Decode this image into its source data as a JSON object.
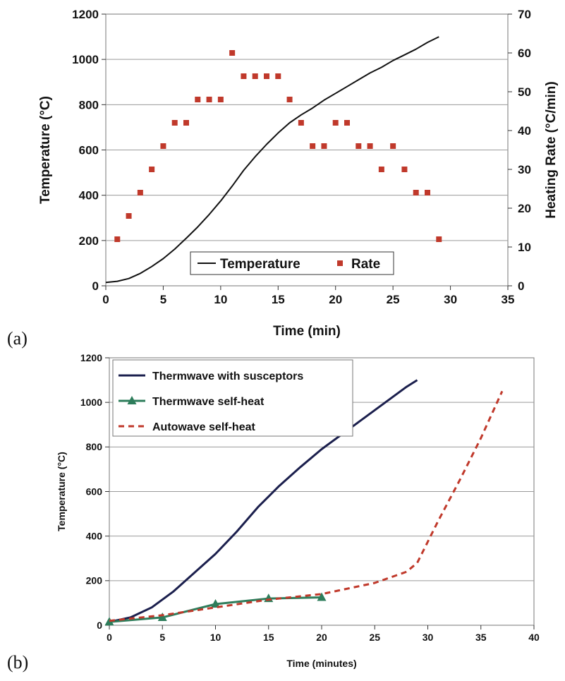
{
  "charts": [
    {
      "panel_label": "(a)",
      "chart_data": {
        "type": "line",
        "xlabel": "Time (min)",
        "ylabel": "Temperature (°C)",
        "y2label": "Heating Rate (°C/min)",
        "xlim": [
          0,
          35
        ],
        "ylim": [
          0,
          1200
        ],
        "y2lim": [
          0,
          70
        ],
        "xticks": [
          0,
          5,
          10,
          15,
          20,
          25,
          30,
          35
        ],
        "yticks": [
          0,
          200,
          400,
          600,
          800,
          1000,
          1200
        ],
        "y2ticks": [
          0,
          10,
          20,
          30,
          40,
          50,
          60,
          70
        ],
        "grid": true,
        "legend_position": "bottom-center",
        "series": [
          {
            "name": "Temperature",
            "kind": "line",
            "axis": "left",
            "color": "#111111",
            "x": [
              0,
              1,
              2,
              3,
              4,
              5,
              6,
              7,
              8,
              9,
              10,
              11,
              12,
              13,
              14,
              15,
              16,
              17,
              18,
              19,
              20,
              21,
              22,
              23,
              24,
              25,
              26,
              27,
              28,
              29
            ],
            "y": [
              15,
              20,
              32,
              55,
              85,
              120,
              162,
              210,
              260,
              315,
              375,
              440,
              510,
              570,
              625,
              675,
              720,
              755,
              785,
              820,
              850,
              880,
              910,
              940,
              965,
              995,
              1020,
              1045,
              1075,
              1100
            ]
          },
          {
            "name": "Rate",
            "kind": "scatter",
            "axis": "right",
            "color": "#c0392b",
            "x": [
              1,
              2,
              3,
              4,
              5,
              6,
              7,
              8,
              9,
              10,
              11,
              12,
              13,
              14,
              15,
              16,
              17,
              18,
              19,
              20,
              21,
              22,
              23,
              24,
              25,
              26,
              27,
              28,
              29
            ],
            "y": [
              12,
              18,
              24,
              30,
              36,
              42,
              42,
              48,
              48,
              48,
              60,
              54,
              54,
              54,
              54,
              48,
              42,
              36,
              36,
              42,
              42,
              36,
              36,
              30,
              36,
              30,
              24,
              24,
              12
            ]
          }
        ]
      }
    },
    {
      "panel_label": "(b)",
      "chart_data": {
        "type": "line",
        "xlabel": "Time (minutes)",
        "ylabel": "Temperature (°C)",
        "xlim": [
          0,
          40
        ],
        "ylim": [
          0,
          1200
        ],
        "xticks": [
          0,
          5,
          10,
          15,
          20,
          25,
          30,
          35,
          40
        ],
        "yticks": [
          0,
          200,
          400,
          600,
          800,
          1000,
          1200
        ],
        "grid": true,
        "legend_position": "top-left",
        "series": [
          {
            "name": "Thermwave with susceptors",
            "kind": "line",
            "color": "#1b1f4d",
            "x": [
              0,
              2,
              4,
              6,
              8,
              10,
              12,
              14,
              16,
              18,
              20,
              22,
              24,
              26,
              28,
              29
            ],
            "y": [
              15,
              35,
              80,
              150,
              235,
              320,
              420,
              530,
              625,
              710,
              790,
              860,
              930,
              1000,
              1070,
              1100
            ]
          },
          {
            "name": "Thermwave self-heat",
            "kind": "line-marker",
            "color": "#2e7d5b",
            "x": [
              0,
              5,
              10,
              15,
              20
            ],
            "y": [
              15,
              35,
              95,
              120,
              125
            ]
          },
          {
            "name": "Autowave self-heat",
            "kind": "dashed",
            "color": "#c0392b",
            "x": [
              0,
              5,
              10,
              15,
              20,
              25,
              28,
              29,
              31,
              33,
              35,
              37
            ],
            "y": [
              20,
              45,
              80,
              115,
              140,
              190,
              240,
              280,
              470,
              650,
              840,
              1050
            ]
          }
        ]
      }
    }
  ]
}
